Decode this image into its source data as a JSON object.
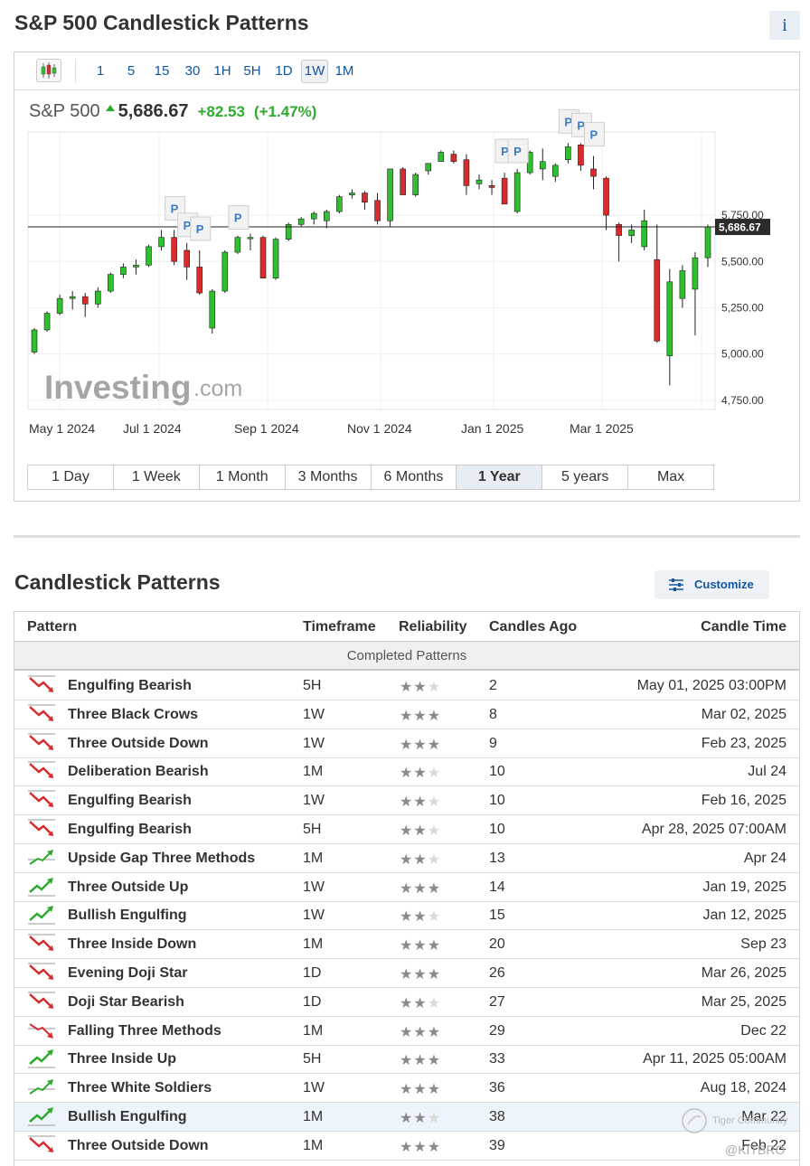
{
  "page": {
    "title": "S&P 500 Candlestick Patterns",
    "info_label": "i"
  },
  "timeframes": [
    "1",
    "5",
    "15",
    "30",
    "1H",
    "5H",
    "1D",
    "1W",
    "1M"
  ],
  "timeframe_active": "1W",
  "quote": {
    "name": "S&P 500",
    "price": "5,686.67",
    "change": "+82.53",
    "change_pct": "(+1.47%)"
  },
  "chart_data": {
    "type": "candlestick",
    "x_ticks": [
      "May 1 2024",
      "Jul 1 2024",
      "Sep 1 2024",
      "Nov 1 2024",
      "Jan 1 2025",
      "Mar 1 2025"
    ],
    "y_ticks": [
      "5,750.00",
      "5,500.00",
      "5,250.00",
      "5,000.00",
      "4,750.00"
    ],
    "y_tick_values": [
      5750,
      5500,
      5250,
      5000,
      4750
    ],
    "ylim": [
      4700,
      6200
    ],
    "current_price_label": "5,686.67",
    "current_price": 5686.67,
    "pattern_marker_label": "P",
    "pattern_marker_candles": [
      11,
      12,
      13,
      16,
      37,
      38,
      42,
      43,
      44
    ],
    "candles": [
      {
        "o": 5010,
        "h": 5140,
        "l": 5000,
        "c": 5130
      },
      {
        "o": 5130,
        "h": 5230,
        "l": 5120,
        "c": 5220
      },
      {
        "o": 5220,
        "h": 5320,
        "l": 5210,
        "c": 5300
      },
      {
        "o": 5300,
        "h": 5340,
        "l": 5240,
        "c": 5310
      },
      {
        "o": 5310,
        "h": 5330,
        "l": 5200,
        "c": 5270
      },
      {
        "o": 5270,
        "h": 5360,
        "l": 5250,
        "c": 5340
      },
      {
        "o": 5340,
        "h": 5440,
        "l": 5330,
        "c": 5430
      },
      {
        "o": 5430,
        "h": 5490,
        "l": 5410,
        "c": 5470
      },
      {
        "o": 5470,
        "h": 5510,
        "l": 5430,
        "c": 5480
      },
      {
        "o": 5480,
        "h": 5590,
        "l": 5470,
        "c": 5580
      },
      {
        "o": 5580,
        "h": 5670,
        "l": 5560,
        "c": 5630
      },
      {
        "o": 5630,
        "h": 5670,
        "l": 5480,
        "c": 5500
      },
      {
        "o": 5560,
        "h": 5600,
        "l": 5400,
        "c": 5470
      },
      {
        "o": 5470,
        "h": 5560,
        "l": 5320,
        "c": 5330
      },
      {
        "o": 5140,
        "h": 5350,
        "l": 5110,
        "c": 5340
      },
      {
        "o": 5340,
        "h": 5560,
        "l": 5330,
        "c": 5550
      },
      {
        "o": 5550,
        "h": 5640,
        "l": 5540,
        "c": 5630
      },
      {
        "o": 5630,
        "h": 5650,
        "l": 5560,
        "c": 5630
      },
      {
        "o": 5630,
        "h": 5640,
        "l": 5410,
        "c": 5410
      },
      {
        "o": 5410,
        "h": 5630,
        "l": 5400,
        "c": 5620
      },
      {
        "o": 5620,
        "h": 5710,
        "l": 5610,
        "c": 5700
      },
      {
        "o": 5700,
        "h": 5740,
        "l": 5690,
        "c": 5730
      },
      {
        "o": 5730,
        "h": 5770,
        "l": 5700,
        "c": 5760
      },
      {
        "o": 5720,
        "h": 5780,
        "l": 5680,
        "c": 5770
      },
      {
        "o": 5770,
        "h": 5860,
        "l": 5760,
        "c": 5850
      },
      {
        "o": 5860,
        "h": 5890,
        "l": 5840,
        "c": 5870
      },
      {
        "o": 5870,
        "h": 5880,
        "l": 5780,
        "c": 5820
      },
      {
        "o": 5830,
        "h": 5870,
        "l": 5700,
        "c": 5720
      },
      {
        "o": 5720,
        "h": 6000,
        "l": 5690,
        "c": 6000
      },
      {
        "o": 6000,
        "h": 6010,
        "l": 5860,
        "c": 5860
      },
      {
        "o": 5860,
        "h": 5980,
        "l": 5850,
        "c": 5970
      },
      {
        "o": 5990,
        "h": 6030,
        "l": 5970,
        "c": 6030
      },
      {
        "o": 6040,
        "h": 6100,
        "l": 6040,
        "c": 6090
      },
      {
        "o": 6080,
        "h": 6100,
        "l": 6030,
        "c": 6040
      },
      {
        "o": 6050,
        "h": 6080,
        "l": 5860,
        "c": 5910
      },
      {
        "o": 5920,
        "h": 5970,
        "l": 5890,
        "c": 5940
      },
      {
        "o": 5910,
        "h": 5940,
        "l": 5860,
        "c": 5900
      },
      {
        "o": 5950,
        "h": 5980,
        "l": 5820,
        "c": 5810
      },
      {
        "o": 5770,
        "h": 6000,
        "l": 5760,
        "c": 5980
      },
      {
        "o": 5980,
        "h": 6100,
        "l": 5970,
        "c": 6090
      },
      {
        "o": 6000,
        "h": 6110,
        "l": 5940,
        "c": 6040
      },
      {
        "o": 5960,
        "h": 6030,
        "l": 5930,
        "c": 6020
      },
      {
        "o": 6050,
        "h": 6140,
        "l": 6030,
        "c": 6120
      },
      {
        "o": 6130,
        "h": 6140,
        "l": 5990,
        "c": 6020
      },
      {
        "o": 6000,
        "h": 6070,
        "l": 5890,
        "c": 5960
      },
      {
        "o": 5950,
        "h": 5960,
        "l": 5670,
        "c": 5750
      },
      {
        "o": 5700,
        "h": 5710,
        "l": 5500,
        "c": 5640
      },
      {
        "o": 5640,
        "h": 5700,
        "l": 5600,
        "c": 5670
      },
      {
        "o": 5580,
        "h": 5780,
        "l": 5560,
        "c": 5720
      },
      {
        "o": 5510,
        "h": 5700,
        "l": 5060,
        "c": 5070
      },
      {
        "o": 4990,
        "h": 5460,
        "l": 4830,
        "c": 5390
      },
      {
        "o": 5300,
        "h": 5480,
        "l": 5250,
        "c": 5450
      },
      {
        "o": 5350,
        "h": 5550,
        "l": 5100,
        "c": 5520
      },
      {
        "o": 5520,
        "h": 5700,
        "l": 5470,
        "c": 5687
      }
    ]
  },
  "ranges": [
    "1 Day",
    "1 Week",
    "1 Month",
    "3 Months",
    "6 Months",
    "1 Year",
    "5 years",
    "Max"
  ],
  "range_active": "1 Year",
  "patterns_section": {
    "title": "Candlestick Patterns",
    "customize_label": "Customize",
    "columns": {
      "pattern": "Pattern",
      "timeframe": "Timeframe",
      "reliability": "Reliability",
      "candles_ago": "Candles Ago",
      "candle_time": "Candle Time"
    },
    "group_label": "Completed Patterns",
    "rows": [
      {
        "name": "Engulfing Bearish",
        "tf": "5H",
        "rel": 2,
        "ago": "2",
        "time": "May 01, 2025 03:00PM",
        "dir": "down"
      },
      {
        "name": "Three Black Crows",
        "tf": "1W",
        "rel": 3,
        "ago": "8",
        "time": "Mar 02, 2025",
        "dir": "down"
      },
      {
        "name": "Three Outside Down",
        "tf": "1W",
        "rel": 3,
        "ago": "9",
        "time": "Feb 23, 2025",
        "dir": "down"
      },
      {
        "name": "Deliberation Bearish",
        "tf": "1M",
        "rel": 2,
        "ago": "10",
        "time": "Jul 24",
        "dir": "down"
      },
      {
        "name": "Engulfing Bearish",
        "tf": "1W",
        "rel": 2,
        "ago": "10",
        "time": "Feb 16, 2025",
        "dir": "down"
      },
      {
        "name": "Engulfing Bearish",
        "tf": "5H",
        "rel": 2,
        "ago": "10",
        "time": "Apr 28, 2025 07:00AM",
        "dir": "down"
      },
      {
        "name": "Upside Gap Three Methods",
        "tf": "1M",
        "rel": 2,
        "ago": "13",
        "time": "Apr 24",
        "dir": "cont-up"
      },
      {
        "name": "Three Outside Up",
        "tf": "1W",
        "rel": 3,
        "ago": "14",
        "time": "Jan 19, 2025",
        "dir": "up"
      },
      {
        "name": "Bullish Engulfing",
        "tf": "1W",
        "rel": 2,
        "ago": "15",
        "time": "Jan 12, 2025",
        "dir": "up"
      },
      {
        "name": "Three Inside Down",
        "tf": "1M",
        "rel": 3,
        "ago": "20",
        "time": "Sep 23",
        "dir": "down"
      },
      {
        "name": "Evening Doji Star",
        "tf": "1D",
        "rel": 3,
        "ago": "26",
        "time": "Mar 26, 2025",
        "dir": "down"
      },
      {
        "name": "Doji Star Bearish",
        "tf": "1D",
        "rel": 2,
        "ago": "27",
        "time": "Mar 25, 2025",
        "dir": "down"
      },
      {
        "name": "Falling Three Methods",
        "tf": "1M",
        "rel": 3,
        "ago": "29",
        "time": "Dec 22",
        "dir": "cont-down"
      },
      {
        "name": "Three Inside Up",
        "tf": "5H",
        "rel": 3,
        "ago": "33",
        "time": "Apr 11, 2025 05:00AM",
        "dir": "up"
      },
      {
        "name": "Three White Soldiers",
        "tf": "1W",
        "rel": 3,
        "ago": "36",
        "time": "Aug 18, 2024",
        "dir": "cont-up"
      },
      {
        "name": "Bullish Engulfing",
        "tf": "1M",
        "rel": 2,
        "ago": "38",
        "time": "Mar 22",
        "dir": "up",
        "highlight": true
      },
      {
        "name": "Three Outside Down",
        "tf": "1M",
        "rel": 3,
        "ago": "39",
        "time": "Feb 22",
        "dir": "down"
      }
    ]
  },
  "watermark": {
    "line1": "Tiger Community",
    "line2": "@KITBRO"
  },
  "colors": {
    "up": "#2fbf2f",
    "down": "#d92b2b",
    "link": "#1256a0",
    "price_box": "#2b2b2b"
  }
}
